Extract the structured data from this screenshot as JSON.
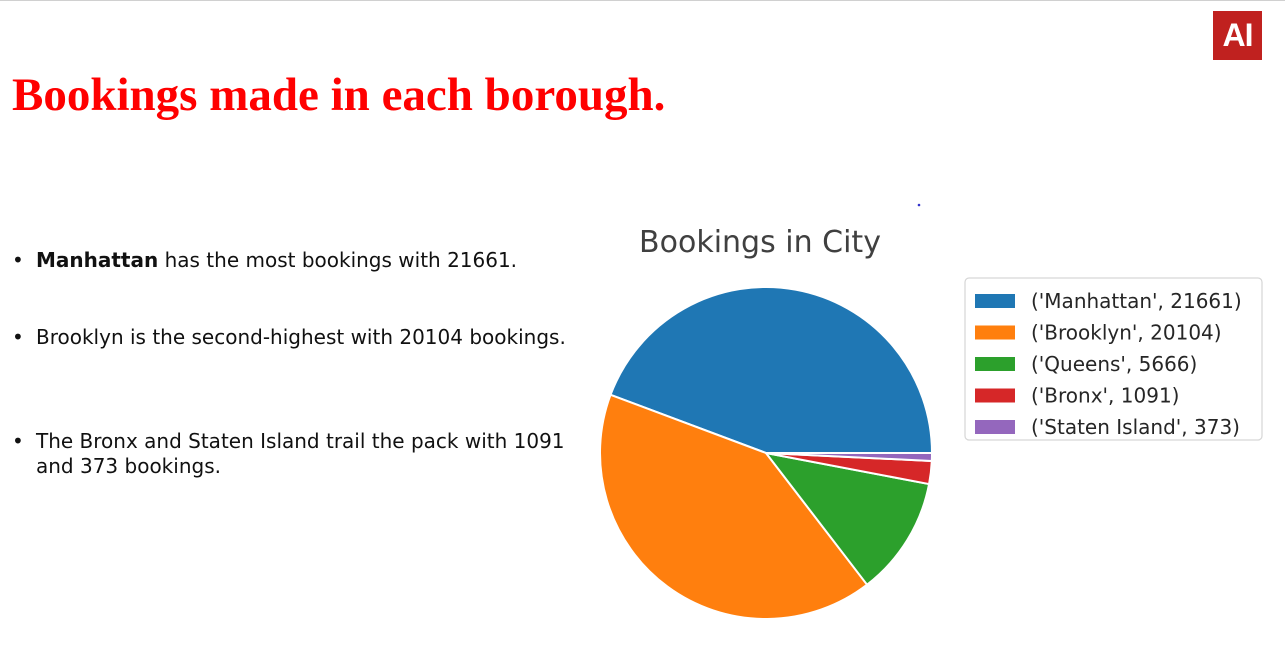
{
  "logo": {
    "text": "AI",
    "color": "#c0211f"
  },
  "page": {
    "title": "Bookings made in each borough.",
    "title_color": "#ff0000"
  },
  "bullets": [
    {
      "bold": "Manhattan",
      "text": " has the most bookings with 21661."
    },
    {
      "bold": "",
      "text": "Brooklyn is the second-highest with 20104 bookings."
    },
    {
      "bold": "",
      "text": "The Bronx and Staten Island trail the pack with 1091 and 373 bookings."
    }
  ],
  "chart_data": {
    "type": "pie",
    "title": "Bookings in City",
    "categories": [
      "Manhattan",
      "Brooklyn",
      "Queens",
      "Bronx",
      "Staten Island"
    ],
    "values": [
      21661,
      20104,
      5666,
      1091,
      373
    ],
    "legend_labels": [
      "('Manhattan', 21661)",
      "('Brooklyn', 20104)",
      "('Queens', 5666)",
      "('Bronx', 1091)",
      "('Staten Island', 373)"
    ],
    "colors": [
      "#1f77b4",
      "#ff7f0e",
      "#2ca02c",
      "#d62728",
      "#9467bd"
    ],
    "start": "3 o'clock",
    "direction": "counterclockwise",
    "legend_position": "right"
  }
}
